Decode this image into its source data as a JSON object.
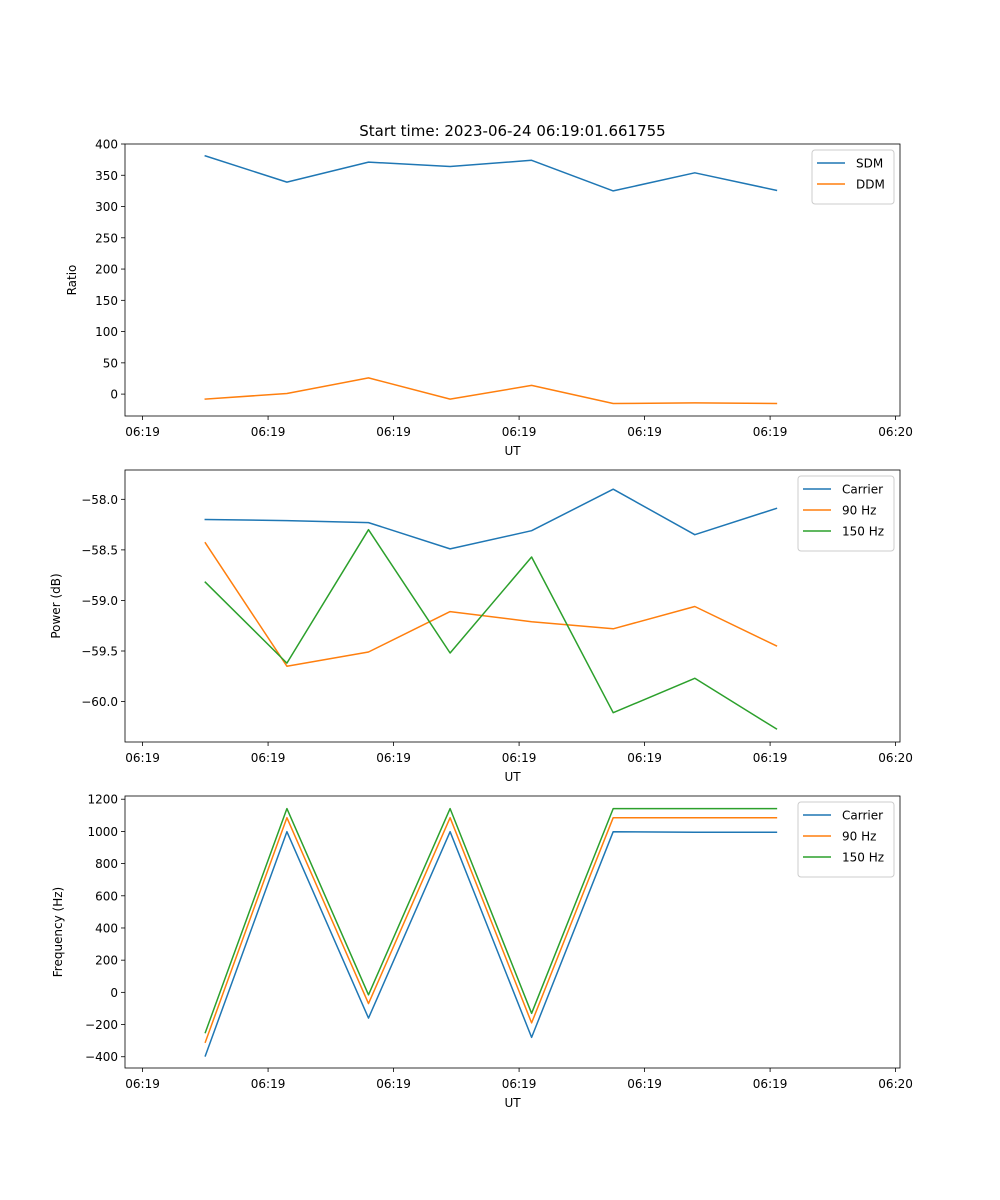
{
  "figure_title": "Start time: 2023-06-24 06:19:01.661755",
  "chart_data": [
    {
      "type": "line",
      "title": "Start time: 2023-06-24 06:19:01.661755",
      "xlabel": "UT",
      "ylabel": "Ratio",
      "x_tick_labels": [
        "06:19",
        "06:19",
        "06:19",
        "06:19",
        "06:19",
        "06:19",
        "06:20"
      ],
      "x_ticks_seconds": [
        0,
        2,
        4,
        6,
        8,
        10,
        12
      ],
      "x_seconds": [
        1,
        2.3,
        3.6,
        4.9,
        6.2,
        7.5,
        8.8,
        10.1
      ],
      "xlim_seconds": [
        -0.28,
        12.07
      ],
      "ylim": [
        -35,
        400
      ],
      "y_ticks": [
        0,
        50,
        100,
        150,
        200,
        250,
        300,
        350,
        400
      ],
      "y_tick_labels": [
        "0",
        "50",
        "100",
        "150",
        "200",
        "250",
        "300",
        "350",
        "400"
      ],
      "legend_position": "top-right",
      "series": [
        {
          "name": "SDM",
          "color": "#1f77b4",
          "values": [
            381,
            339,
            371,
            364,
            374,
            325,
            354,
            326
          ]
        },
        {
          "name": "DDM",
          "color": "#ff7f0e",
          "values": [
            -8,
            1,
            26,
            -8,
            14,
            -15,
            -14,
            -15
          ]
        }
      ]
    },
    {
      "type": "line",
      "xlabel": "UT",
      "ylabel": "Power (dB)",
      "x_tick_labels": [
        "06:19",
        "06:19",
        "06:19",
        "06:19",
        "06:19",
        "06:19",
        "06:20"
      ],
      "x_ticks_seconds": [
        0,
        2,
        4,
        6,
        8,
        10,
        12
      ],
      "x_seconds": [
        1,
        2.3,
        3.6,
        4.9,
        6.2,
        7.5,
        8.8,
        10.1
      ],
      "xlim_seconds": [
        -0.28,
        12.07
      ],
      "ylim": [
        -60.4,
        -57.71
      ],
      "y_ticks": [
        -60.0,
        -59.5,
        -59.0,
        -58.5,
        -58.0
      ],
      "y_tick_labels": [
        "−60.0",
        "−59.5",
        "−59.0",
        "−58.5",
        "−58.0"
      ],
      "legend_position": "top-right",
      "series": [
        {
          "name": "Carrier",
          "color": "#1f77b4",
          "values": [
            -58.2,
            -58.21,
            -58.23,
            -58.49,
            -58.31,
            -57.9,
            -58.35,
            -58.09
          ]
        },
        {
          "name": "90 Hz",
          "color": "#ff7f0e",
          "values": [
            -58.43,
            -59.65,
            -59.51,
            -59.11,
            -59.21,
            -59.28,
            -59.06,
            -59.45
          ]
        },
        {
          "name": "150 Hz",
          "color": "#2ca02c",
          "values": [
            -58.82,
            -59.62,
            -58.3,
            -59.52,
            -58.57,
            -60.11,
            -59.77,
            -60.27
          ]
        }
      ]
    },
    {
      "type": "line",
      "xlabel": "UT",
      "ylabel": "Frequency (Hz)",
      "x_tick_labels": [
        "06:19",
        "06:19",
        "06:19",
        "06:19",
        "06:19",
        "06:19",
        "06:20"
      ],
      "x_ticks_seconds": [
        0,
        2,
        4,
        6,
        8,
        10,
        12
      ],
      "x_seconds": [
        1,
        2.3,
        3.6,
        4.9,
        6.2,
        7.5,
        8.8,
        10.1
      ],
      "xlim_seconds": [
        -0.28,
        12.07
      ],
      "ylim": [
        -470,
        1220
      ],
      "y_ticks": [
        -400,
        -200,
        0,
        200,
        400,
        600,
        800,
        1000,
        1200
      ],
      "y_tick_labels": [
        "−400",
        "−200",
        "0",
        "200",
        "400",
        "600",
        "800",
        "1000",
        "1200"
      ],
      "legend_position": "top-right",
      "series": [
        {
          "name": "Carrier",
          "color": "#1f77b4",
          "values": [
            -395,
            998,
            -160,
            998,
            -280,
            998,
            995,
            995
          ]
        },
        {
          "name": "90 Hz",
          "color": "#ff7f0e",
          "values": [
            -310,
            1085,
            -70,
            1085,
            -190,
            1085,
            1085,
            1085
          ]
        },
        {
          "name": "150 Hz",
          "color": "#2ca02c",
          "values": [
            -250,
            1142,
            -15,
            1142,
            -130,
            1142,
            1142,
            1142
          ]
        }
      ]
    }
  ]
}
